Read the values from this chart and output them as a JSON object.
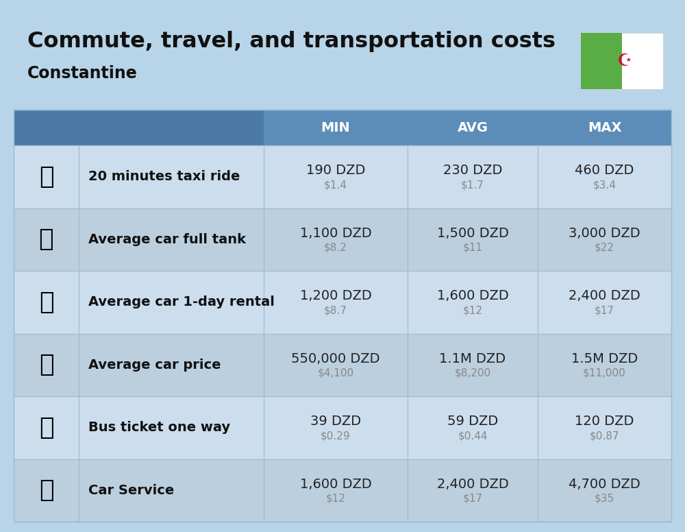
{
  "title": "Commute, travel, and transportation costs",
  "subtitle": "Constantine",
  "bg_color": "#b8d4e8",
  "header_color": "#5b8db8",
  "header_dark_color": "#4a7aa5",
  "row_colors": [
    "#ccdded",
    "#bccfdf"
  ],
  "header_text_color": "#ffffff",
  "label_text_color": "#111111",
  "value_text_color": "#222222",
  "usd_text_color": "#888888",
  "col_headers": [
    "MIN",
    "AVG",
    "MAX"
  ],
  "rows": [
    {
      "label": "20 minutes taxi ride",
      "min_dzd": "190 DZD",
      "min_usd": "$1.4",
      "avg_dzd": "230 DZD",
      "avg_usd": "$1.7",
      "max_dzd": "460 DZD",
      "max_usd": "$3.4"
    },
    {
      "label": "Average car full tank",
      "min_dzd": "1,100 DZD",
      "min_usd": "$8.2",
      "avg_dzd": "1,500 DZD",
      "avg_usd": "$11",
      "max_dzd": "3,000 DZD",
      "max_usd": "$22"
    },
    {
      "label": "Average car 1-day rental",
      "min_dzd": "1,200 DZD",
      "min_usd": "$8.7",
      "avg_dzd": "1,600 DZD",
      "avg_usd": "$12",
      "max_dzd": "2,400 DZD",
      "max_usd": "$17"
    },
    {
      "label": "Average car price",
      "min_dzd": "550,000 DZD",
      "min_usd": "$4,100",
      "avg_dzd": "1.1M DZD",
      "avg_usd": "$8,200",
      "max_dzd": "1.5M DZD",
      "max_usd": "$11,000"
    },
    {
      "label": "Bus ticket one way",
      "min_dzd": "39 DZD",
      "min_usd": "$0.29",
      "avg_dzd": "59 DZD",
      "avg_usd": "$0.44",
      "max_dzd": "120 DZD",
      "max_usd": "$0.87"
    },
    {
      "label": "Car Service",
      "min_dzd": "1,600 DZD",
      "min_usd": "$12",
      "avg_dzd": "2,400 DZD",
      "avg_usd": "$17",
      "max_dzd": "4,700 DZD",
      "max_usd": "$35"
    }
  ],
  "row_emojis": [
    "🚖",
    "⛽️",
    "🚙",
    "🚗",
    "🚌",
    "🚗"
  ],
  "title_fontsize": 23,
  "subtitle_fontsize": 17,
  "header_fontsize": 14,
  "label_fontsize": 14,
  "value_fontsize": 14,
  "usd_fontsize": 11,
  "emoji_fontsize": 26,
  "flag_green": "#5aac44",
  "flag_white": "#ffffff",
  "flag_red": "#d21034",
  "line_color": "#9abccc",
  "divider_color": "#9abccc"
}
